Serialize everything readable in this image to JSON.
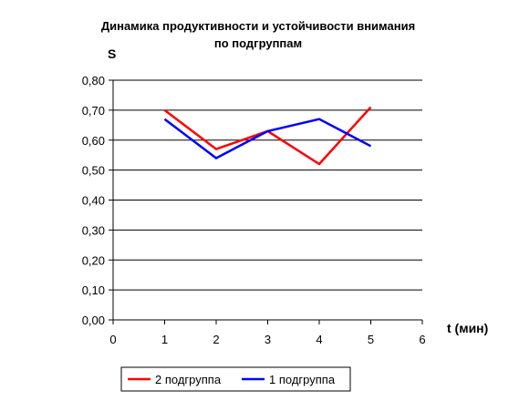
{
  "chart_data": {
    "type": "line",
    "title": "Динамика продуктивности и устойчивости внимания",
    "subtitle": "по подгруппам",
    "xlabel": "t (мин)",
    "ylabel": "S",
    "xlim": [
      0,
      6
    ],
    "ylim": [
      0,
      0.8
    ],
    "x_ticks": [
      "0",
      "1",
      "2",
      "3",
      "4",
      "5",
      "6"
    ],
    "y_ticks": [
      "0,00",
      "0,10",
      "0,20",
      "0,30",
      "0,40",
      "0,50",
      "0,60",
      "0,70",
      "0,80"
    ],
    "x": [
      1,
      2,
      3,
      4,
      5
    ],
    "grid": "horizontal",
    "legend_position": "bottom",
    "series": [
      {
        "name": "2 подгруппа",
        "color": "#ff0000",
        "values": [
          0.7,
          0.57,
          0.63,
          0.52,
          0.71
        ]
      },
      {
        "name": "1 подгруппа",
        "color": "#0000ff",
        "values": [
          0.67,
          0.54,
          0.63,
          0.67,
          0.58
        ]
      }
    ]
  }
}
